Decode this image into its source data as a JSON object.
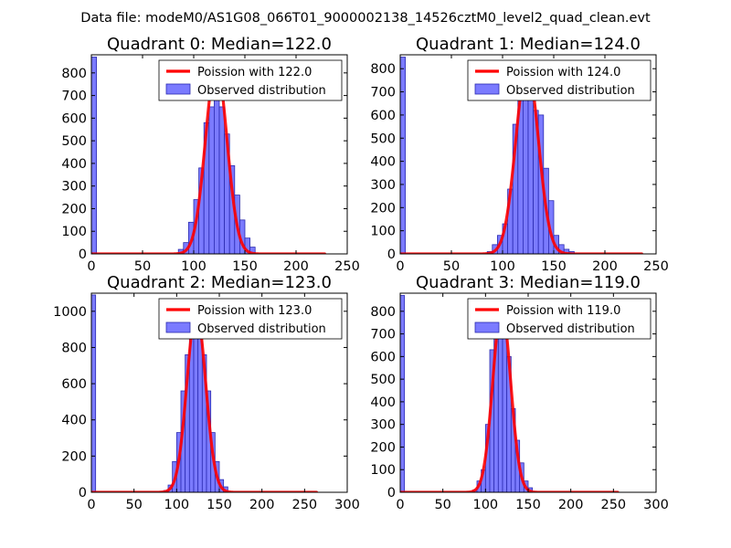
{
  "figure_title": "Data file: modeM0/AS1G08_066T01_9000002138_14526cztM0_level2_quad_clean.evt",
  "colors": {
    "bar_fill": "#7b7bff",
    "bar_edge": "#2b2bb0",
    "fit_line": "#ff0000",
    "axes": "#000000"
  },
  "chart_data": [
    {
      "type": "bar",
      "title": "Quadrant 0: Median=122.0",
      "median": 122.0,
      "xlim": [
        0,
        250
      ],
      "ylim": [
        0,
        880
      ],
      "xticks": [
        0,
        50,
        100,
        150,
        200,
        250
      ],
      "yticks": [
        0,
        100,
        200,
        300,
        400,
        500,
        600,
        700,
        800
      ],
      "legend_location": "top-right",
      "legend": [
        "Poission with 122.0",
        "Observed distribution"
      ],
      "bin_width": 5,
      "bins": [
        {
          "x": 0,
          "count": 870
        },
        {
          "x": 85,
          "count": 20
        },
        {
          "x": 90,
          "count": 50
        },
        {
          "x": 95,
          "count": 140
        },
        {
          "x": 100,
          "count": 240
        },
        {
          "x": 105,
          "count": 380
        },
        {
          "x": 110,
          "count": 580
        },
        {
          "x": 115,
          "count": 650
        },
        {
          "x": 120,
          "count": 720
        },
        {
          "x": 125,
          "count": 650
        },
        {
          "x": 130,
          "count": 530
        },
        {
          "x": 135,
          "count": 390
        },
        {
          "x": 140,
          "count": 260
        },
        {
          "x": 145,
          "count": 150
        },
        {
          "x": 150,
          "count": 70
        },
        {
          "x": 155,
          "count": 30
        }
      ],
      "fit_curve": {
        "label": "Poission with 122.0",
        "peak": 835,
        "center": 122.0,
        "sigma": 10.5,
        "x_min": 0,
        "x_max": 228
      }
    },
    {
      "type": "bar",
      "title": "Quadrant 1: Median=124.0",
      "median": 124.0,
      "xlim": [
        0,
        250
      ],
      "ylim": [
        0,
        860
      ],
      "xticks": [
        0,
        50,
        100,
        150,
        200,
        250
      ],
      "yticks": [
        0,
        100,
        200,
        300,
        400,
        500,
        600,
        700,
        800
      ],
      "legend_location": "top-right",
      "legend": [
        "Poission with 124.0",
        "Observed distribution"
      ],
      "bin_width": 5,
      "bins": [
        {
          "x": 0,
          "count": 850
        },
        {
          "x": 85,
          "count": 10
        },
        {
          "x": 90,
          "count": 40
        },
        {
          "x": 95,
          "count": 80
        },
        {
          "x": 100,
          "count": 130
        },
        {
          "x": 105,
          "count": 280
        },
        {
          "x": 110,
          "count": 560
        },
        {
          "x": 115,
          "count": 700
        },
        {
          "x": 120,
          "count": 790
        },
        {
          "x": 125,
          "count": 690
        },
        {
          "x": 130,
          "count": 620
        },
        {
          "x": 135,
          "count": 600
        },
        {
          "x": 140,
          "count": 370
        },
        {
          "x": 145,
          "count": 230
        },
        {
          "x": 150,
          "count": 80
        },
        {
          "x": 155,
          "count": 40
        },
        {
          "x": 160,
          "count": 20
        },
        {
          "x": 165,
          "count": 10
        }
      ],
      "fit_curve": {
        "label": "Poission with 124.0",
        "peak": 815,
        "center": 124.0,
        "sigma": 11.0,
        "x_min": 0,
        "x_max": 236
      }
    },
    {
      "type": "bar",
      "title": "Quadrant 2: Median=123.0",
      "median": 123.0,
      "xlim": [
        0,
        300
      ],
      "ylim": [
        0,
        1100
      ],
      "xticks": [
        0,
        50,
        100,
        150,
        200,
        250,
        300
      ],
      "yticks": [
        0,
        200,
        400,
        600,
        800,
        1000
      ],
      "legend_location": "top-right",
      "legend": [
        "Poission with 123.0",
        "Observed distribution"
      ],
      "bin_width": 5,
      "bins": [
        {
          "x": 0,
          "count": 1090
        },
        {
          "x": 85,
          "count": 10
        },
        {
          "x": 90,
          "count": 40
        },
        {
          "x": 95,
          "count": 170
        },
        {
          "x": 100,
          "count": 330
        },
        {
          "x": 105,
          "count": 560
        },
        {
          "x": 110,
          "count": 760
        },
        {
          "x": 115,
          "count": 900
        },
        {
          "x": 120,
          "count": 960
        },
        {
          "x": 125,
          "count": 900
        },
        {
          "x": 130,
          "count": 760
        },
        {
          "x": 135,
          "count": 560
        },
        {
          "x": 140,
          "count": 330
        },
        {
          "x": 145,
          "count": 170
        },
        {
          "x": 150,
          "count": 70
        },
        {
          "x": 155,
          "count": 30
        }
      ],
      "fit_curve": {
        "label": "Poission with 123.0",
        "peak": 1000,
        "center": 123.0,
        "sigma": 11.0,
        "x_min": 0,
        "x_max": 264
      }
    },
    {
      "type": "bar",
      "title": "Quadrant 3: Median=119.0",
      "median": 119.0,
      "xlim": [
        0,
        300
      ],
      "ylim": [
        0,
        880
      ],
      "xticks": [
        0,
        50,
        100,
        150,
        200,
        250,
        300
      ],
      "yticks": [
        0,
        100,
        200,
        300,
        400,
        500,
        600,
        700,
        800
      ],
      "legend_location": "top-right",
      "legend": [
        "Poission with 119.0",
        "Observed distribution"
      ],
      "bin_width": 5,
      "bins": [
        {
          "x": 0,
          "count": 870
        },
        {
          "x": 85,
          "count": 10
        },
        {
          "x": 90,
          "count": 50
        },
        {
          "x": 95,
          "count": 100
        },
        {
          "x": 100,
          "count": 300
        },
        {
          "x": 105,
          "count": 630
        },
        {
          "x": 110,
          "count": 790
        },
        {
          "x": 115,
          "count": 760
        },
        {
          "x": 120,
          "count": 740
        },
        {
          "x": 125,
          "count": 600
        },
        {
          "x": 130,
          "count": 370
        },
        {
          "x": 135,
          "count": 230
        },
        {
          "x": 140,
          "count": 130
        },
        {
          "x": 145,
          "count": 50
        },
        {
          "x": 150,
          "count": 20
        }
      ],
      "fit_curve": {
        "label": "Poission with 119.0",
        "peak": 810,
        "center": 119.0,
        "sigma": 10.5,
        "x_min": 0,
        "x_max": 255
      }
    }
  ]
}
